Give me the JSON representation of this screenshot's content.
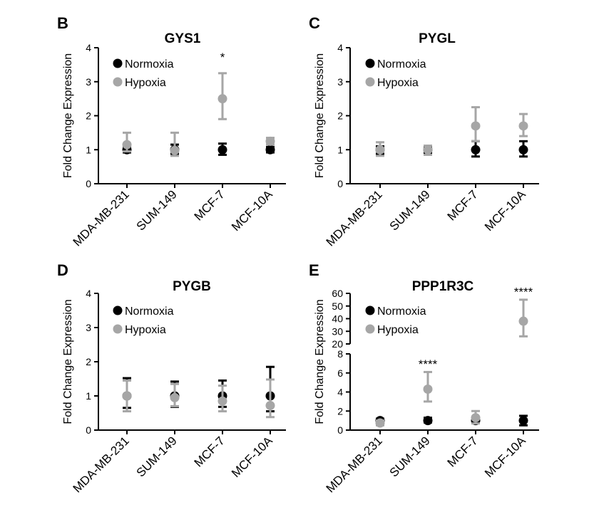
{
  "chart_data": [
    {
      "type": "scatter",
      "panel": "B",
      "title": "GYS1",
      "ylabel": "Fold Change Expression",
      "ylim": [
        0,
        4
      ],
      "yticks": [
        "0",
        "1",
        "2",
        "3",
        "4"
      ],
      "categories": [
        "MDA-MB-231",
        "SUM-149",
        "MCF-7",
        "MCF-10A"
      ],
      "legend": {
        "position": "top-left"
      },
      "colors": {
        "Normoxia": "#000000",
        "Hypoxia": "#a6a6a6"
      },
      "series": [
        {
          "name": "Normoxia",
          "values": [
            1.0,
            1.0,
            1.0,
            1.0
          ],
          "err_low": [
            0.92,
            0.88,
            0.85,
            0.92
          ],
          "err_high": [
            1.1,
            1.15,
            1.18,
            1.08
          ]
        },
        {
          "name": "Hypoxia",
          "values": [
            1.15,
            0.98,
            2.5,
            1.25
          ],
          "err_low": [
            0.95,
            0.82,
            1.9,
            1.15
          ],
          "err_high": [
            1.5,
            1.5,
            3.25,
            1.35
          ]
        }
      ],
      "annotations": [
        {
          "category": "MCF-7",
          "text": "*",
          "y": 3.6
        }
      ]
    },
    {
      "type": "scatter",
      "panel": "C",
      "title": "PYGL",
      "ylabel": "Fold Change Expression",
      "ylim": [
        0,
        4
      ],
      "yticks": [
        "0",
        "1",
        "2",
        "3",
        "4"
      ],
      "categories": [
        "MDA-MB-231",
        "SUM-149",
        "MCF-7",
        "MCF-10A"
      ],
      "legend": {
        "position": "top-left"
      },
      "colors": {
        "Normoxia": "#000000",
        "Hypoxia": "#a6a6a6"
      },
      "series": [
        {
          "name": "Normoxia",
          "values": [
            1.0,
            1.0,
            1.0,
            1.0
          ],
          "err_low": [
            0.88,
            0.9,
            0.8,
            0.8
          ],
          "err_high": [
            1.1,
            1.1,
            1.25,
            1.25
          ]
        },
        {
          "name": "Hypoxia",
          "values": [
            1.0,
            1.0,
            1.7,
            1.7
          ],
          "err_low": [
            0.82,
            0.85,
            1.25,
            1.4
          ],
          "err_high": [
            1.22,
            1.12,
            2.25,
            2.05
          ]
        }
      ],
      "annotations": []
    },
    {
      "type": "scatter",
      "panel": "D",
      "title": "PYGB",
      "ylabel": "Fold Change Expression",
      "ylim": [
        0,
        4
      ],
      "yticks": [
        "0",
        "1",
        "2",
        "3",
        "4"
      ],
      "categories": [
        "MDA-MB-231",
        "SUM-149",
        "MCF-7",
        "MCF-10A"
      ],
      "legend": {
        "position": "top-left"
      },
      "colors": {
        "Normoxia": "#000000",
        "Hypoxia": "#a6a6a6"
      },
      "series": [
        {
          "name": "Normoxia",
          "values": [
            1.0,
            1.0,
            1.0,
            1.0
          ],
          "err_low": [
            0.65,
            0.68,
            0.68,
            0.55
          ],
          "err_high": [
            1.52,
            1.42,
            1.45,
            1.85
          ]
        },
        {
          "name": "Hypoxia",
          "values": [
            1.0,
            0.95,
            0.85,
            0.72
          ],
          "err_low": [
            0.55,
            0.7,
            0.55,
            0.38
          ],
          "err_high": [
            1.45,
            1.35,
            1.3,
            1.48
          ]
        }
      ],
      "annotations": []
    },
    {
      "type": "scatter",
      "panel": "E",
      "title": "PPP1R3C",
      "ylabel": "Fold Change Expression",
      "y_axis_break": {
        "lower": [
          0,
          8
        ],
        "upper": [
          20,
          60
        ]
      },
      "yticks_lower": [
        "0",
        "2",
        "4",
        "6",
        "8"
      ],
      "yticks_upper": [
        "20",
        "30",
        "40",
        "50",
        "60"
      ],
      "categories": [
        "MDA-MB-231",
        "SUM-149",
        "MCF-7",
        "MCF-10A"
      ],
      "legend": {
        "position": "top-left"
      },
      "colors": {
        "Normoxia": "#000000",
        "Hypoxia": "#a6a6a6"
      },
      "series": [
        {
          "name": "Normoxia",
          "values": [
            1.0,
            1.0,
            1.0,
            1.0
          ],
          "err_low": [
            0.8,
            0.8,
            0.75,
            0.5
          ],
          "err_high": [
            1.2,
            1.3,
            1.3,
            1.5
          ]
        },
        {
          "name": "Hypoxia",
          "values": [
            0.75,
            4.3,
            1.3,
            38.0
          ],
          "err_low": [
            0.5,
            3.0,
            0.7,
            26.0
          ],
          "err_high": [
            1.0,
            6.1,
            2.0,
            55.0
          ]
        }
      ],
      "annotations": [
        {
          "category": "SUM-149",
          "text": "****",
          "y": 6.5
        },
        {
          "category": "MCF-10A",
          "text": "****",
          "y": 58
        }
      ]
    }
  ]
}
